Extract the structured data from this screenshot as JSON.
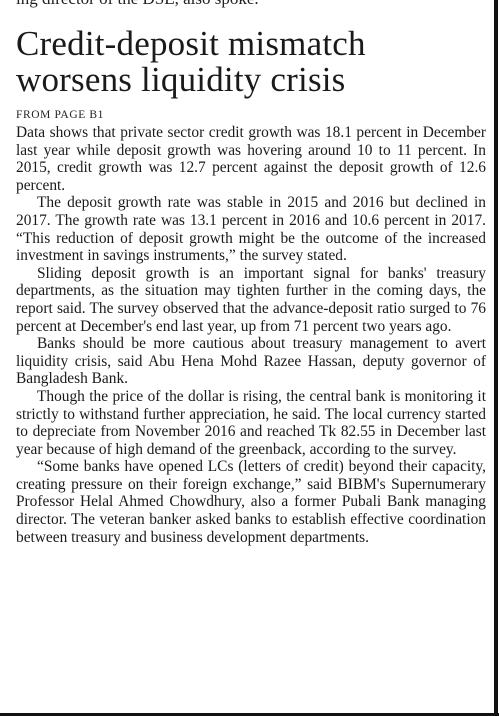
{
  "previous_article_tail": "ing director of the DSE, also spoke.",
  "headline": {
    "line1": "Credit-deposit mismatch",
    "line2": "worsens liquidity crisis"
  },
  "jump_line": "FROM PAGE B1",
  "paragraphs": [
    "Data shows that private sector credit growth was 18.1 percent in December last year while deposit growth was hovering around 10 to 11 percent. In 2015, credit growth was 12.7 percent against the deposit growth of 12.6 percent.",
    "The deposit growth rate was stable in 2015 and 2016 but declined in 2017. The growth rate was 13.1 percent in 2016 and 10.6 percent in 2017. “This reduction of deposit growth might be the outcome of the increased investment in savings instruments,” the survey stated.",
    "Sliding deposit growth is an important signal for banks' treasury departments, as the situation may tighten further in the coming days, the report said. The survey observed that the advance-deposit ratio surged to 76 percent at December's end last year, up from 71 percent two years ago.",
    "Banks should be more cautious about treasury management to avert liquidity crisis, said Abu Hena Mohd Razee Hassan, deputy governor of Bangladesh Bank.",
    "Though the price of the dollar is rising, the central bank is monitoring it strictly to withstand further appreciation, he said. The local currency started to depreciate from November 2016 and reached Tk 82.55 in December last year because of high demand of the greenback, according to the survey.",
    "“Some banks have opened LCs (letters of credit) beyond their capacity, creating pressure on their foreign exchange,” said BIBM's Supernumerary Professor Helal Ahmed Chowdhury, also a former Pubali Bank managing director. The veteran banker asked banks to establish effective coordination between treasury and business development departments."
  ]
}
